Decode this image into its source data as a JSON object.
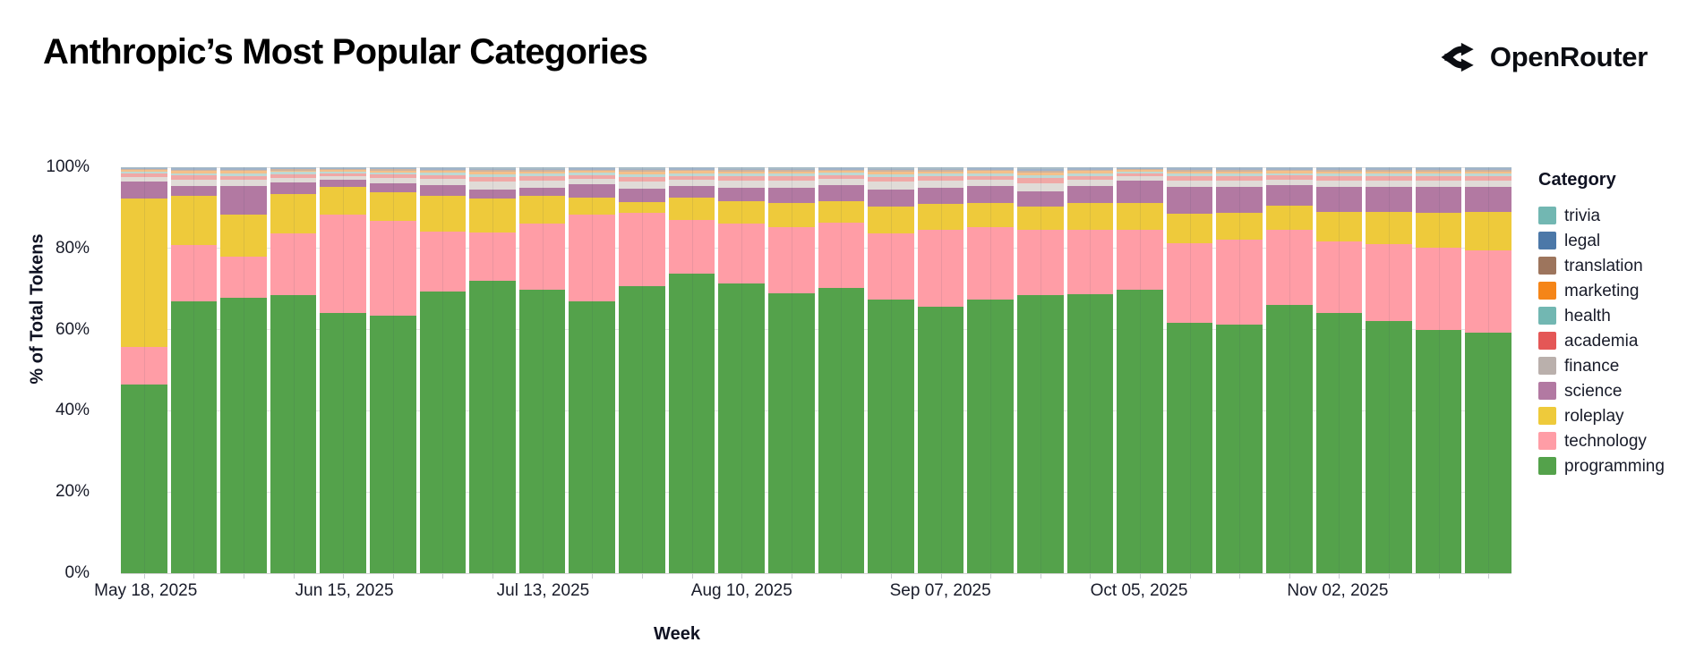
{
  "header": {
    "title": "Anthropic’s Most Popular Categories",
    "brand": "OpenRouter"
  },
  "chart_data": {
    "type": "bar",
    "stacked": true,
    "title": "Anthropic’s Most Popular Categories",
    "xlabel": "Week",
    "ylabel": "% of Total Tokens",
    "ylim": [
      0,
      100
    ],
    "yticks": [
      {
        "pct": 0,
        "label": "0%"
      },
      {
        "pct": 20,
        "label": "20%"
      },
      {
        "pct": 40,
        "label": "40%"
      },
      {
        "pct": 60,
        "label": "60%"
      },
      {
        "pct": 80,
        "label": "80%"
      },
      {
        "pct": 100,
        "label": "100%"
      }
    ],
    "legend_title": "Category",
    "legend_position": "right",
    "grid": true,
    "categories": [
      "May 18, 2025",
      "May 25, 2025",
      "Jun 01, 2025",
      "Jun 08, 2025",
      "Jun 15, 2025",
      "Jun 22, 2025",
      "Jun 29, 2025",
      "Jul 06, 2025",
      "Jul 13, 2025",
      "Jul 20, 2025",
      "Jul 27, 2025",
      "Aug 03, 2025",
      "Aug 10, 2025",
      "Aug 17, 2025",
      "Aug 24, 2025",
      "Aug 31, 2025",
      "Sep 07, 2025",
      "Sep 14, 2025",
      "Sep 21, 2025",
      "Sep 28, 2025",
      "Oct 05, 2025",
      "Oct 12, 2025",
      "Oct 19, 2025",
      "Oct 26, 2025",
      "Nov 02, 2025",
      "Nov 09, 2025",
      "Nov 16, 2025",
      "Nov 23, 2025"
    ],
    "x_ticks": [
      {
        "index": 0,
        "label": "May 18, 2025"
      },
      {
        "index": 4,
        "label": "Jun 15, 2025"
      },
      {
        "index": 8,
        "label": "Jul 13, 2025"
      },
      {
        "index": 12,
        "label": "Aug 10, 2025"
      },
      {
        "index": 16,
        "label": "Sep 07, 2025"
      },
      {
        "index": 20,
        "label": "Oct 05, 2025"
      },
      {
        "index": 24,
        "label": "Nov 02, 2025"
      }
    ],
    "series": [
      {
        "name": "trivia",
        "color": "#72b7b2",
        "bar_color": "#a9bcc6",
        "values": [
          0.23,
          0.3,
          0.31,
          0.25,
          0.21,
          0.26,
          0.29,
          0.36,
          0.34,
          0.28,
          0.35,
          0.31,
          0.34,
          0.34,
          0.29,
          0.36,
          0.34,
          0.31,
          0.4,
          0.31,
          0.22,
          0.32,
          0.32,
          0.3,
          0.32,
          0.32,
          0.32,
          0.32
        ]
      },
      {
        "name": "legal",
        "color": "#4c78a8",
        "bar_color": "#9fb3ca",
        "values": [
          0.23,
          0.3,
          0.31,
          0.25,
          0.21,
          0.26,
          0.29,
          0.36,
          0.34,
          0.28,
          0.35,
          0.31,
          0.34,
          0.34,
          0.29,
          0.36,
          0.34,
          0.31,
          0.4,
          0.31,
          0.22,
          0.32,
          0.32,
          0.3,
          0.32,
          0.32,
          0.32,
          0.32
        ]
      },
      {
        "name": "translation",
        "color": "#9d755d",
        "bar_color": "#cdb39f",
        "values": [
          0.27,
          0.35,
          0.36,
          0.29,
          0.25,
          0.3,
          0.34,
          0.42,
          0.39,
          0.32,
          0.41,
          0.36,
          0.39,
          0.39,
          0.34,
          0.42,
          0.39,
          0.36,
          0.46,
          0.36,
          0.26,
          0.38,
          0.38,
          0.35,
          0.38,
          0.38,
          0.37,
          0.38
        ]
      },
      {
        "name": "marketing",
        "color": "#f58518",
        "bar_color": "#f4c08a",
        "values": [
          0.38,
          0.51,
          0.52,
          0.42,
          0.35,
          0.43,
          0.48,
          0.59,
          0.56,
          0.46,
          0.58,
          0.52,
          0.56,
          0.56,
          0.48,
          0.59,
          0.56,
          0.52,
          0.66,
          0.52,
          0.37,
          0.54,
          0.54,
          0.49,
          0.54,
          0.54,
          0.53,
          0.54
        ]
      },
      {
        "name": "health",
        "color": "#72b7b2",
        "bar_color": "#bdd9d4",
        "values": [
          0.46,
          0.61,
          0.62,
          0.5,
          0.42,
          0.51,
          0.58,
          0.71,
          0.67,
          0.55,
          0.7,
          0.62,
          0.67,
          0.67,
          0.58,
          0.71,
          0.67,
          0.62,
          0.79,
          0.62,
          0.45,
          0.65,
          0.65,
          0.59,
          0.65,
          0.65,
          0.63,
          0.65
        ]
      },
      {
        "name": "academia",
        "color": "#e45756",
        "bar_color": "#f0a8a6",
        "values": [
          0.77,
          1.01,
          1.03,
          0.84,
          0.7,
          0.86,
          0.97,
          1.19,
          1.12,
          0.92,
          1.16,
          1.03,
          1.12,
          1.12,
          0.97,
          1.19,
          1.12,
          1.03,
          1.32,
          1.03,
          0.75,
          1.08,
          1.08,
          0.99,
          1.08,
          1.08,
          1.05,
          1.08
        ]
      },
      {
        "name": "finance",
        "color": "#bab0ac",
        "bar_color": "#e0dbd7",
        "values": [
          1.15,
          1.52,
          1.55,
          1.25,
          1.05,
          1.29,
          1.45,
          1.78,
          1.68,
          1.38,
          1.75,
          1.55,
          1.68,
          1.68,
          1.45,
          1.78,
          1.68,
          1.55,
          1.98,
          1.55,
          1.12,
          1.62,
          1.62,
          1.48,
          1.62,
          1.62,
          1.58,
          1.62
        ]
      },
      {
        "name": "science",
        "color": "#b279a2",
        "values": [
          4.3,
          2.5,
          7.0,
          2.9,
          1.7,
          2.2,
          2.7,
          2.4,
          2.0,
          3.4,
          3.3,
          2.9,
          3.2,
          3.7,
          3.9,
          4.2,
          4.0,
          4.1,
          3.8,
          4.2,
          5.4,
          6.6,
          6.4,
          5.0,
          6.2,
          6.1,
          6.5,
          6.1
        ]
      },
      {
        "name": "roleplay",
        "color": "#eeca3b",
        "values": [
          36.6,
          12.1,
          10.4,
          9.5,
          6.8,
          7.2,
          8.8,
          8.3,
          6.9,
          4.1,
          2.7,
          5.3,
          5.6,
          6.0,
          5.4,
          6.6,
          6.3,
          6.0,
          5.6,
          6.5,
          6.7,
          7.3,
          6.5,
          6.0,
          7.3,
          8.0,
          8.6,
          9.5
        ]
      },
      {
        "name": "technology",
        "color": "#ff9da6",
        "values": [
          9.1,
          13.8,
          10.1,
          15.4,
          24.3,
          23.2,
          14.8,
          11.8,
          16.3,
          21.3,
          17.9,
          13.4,
          14.8,
          16.2,
          16.1,
          16.5,
          19.0,
          17.9,
          16.2,
          15.8,
          14.6,
          19.6,
          20.9,
          18.4,
          17.6,
          18.8,
          20.1,
          20.2
        ]
      },
      {
        "name": "programming",
        "color": "#54a24b",
        "values": [
          46.5,
          67.0,
          67.8,
          68.4,
          64.0,
          63.5,
          69.3,
          72.1,
          69.7,
          67.0,
          70.8,
          73.7,
          71.3,
          69.0,
          70.2,
          67.3,
          65.6,
          67.3,
          68.4,
          68.8,
          69.9,
          61.6,
          61.3,
          66.1,
          64.0,
          62.2,
          60.0,
          59.3
        ]
      }
    ]
  }
}
